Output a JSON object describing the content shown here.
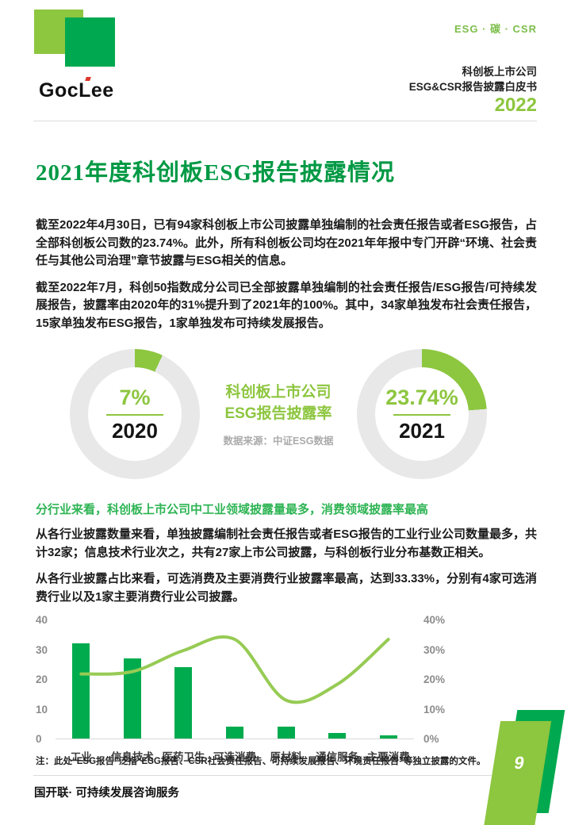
{
  "header": {
    "logo_text_1": "Goc",
    "logo_text_2": "L",
    "logo_text_3": "ee",
    "tagline": "ESG · 碳 · CSR",
    "title_line1": "科创板上市公司",
    "title_line2": "ESG&CSR报告披露白皮书",
    "year": "2022"
  },
  "main_title": "2021年度科创板ESG报告披露情况",
  "paragraphs": [
    "截至2022年4月30日，已有94家科创板上市公司披露单独编制的社会责任报告或者ESG报告，占全部科创板公司数的23.74%。此外，所有科创板公司均在2021年年报中专门开辟“环境、社会责任与其他公司治理”章节披露与ESG相关的信息。",
    "截至2022年7月，科创50指数成分公司已全部披露单独编制的社会责任报告/ESG报告/可持续发展报告，披露率由2020年的31%提升到了2021年的100%。其中，34家单独发布社会责任报告，15家单独发布ESG报告，1家单独发布可持续发展报告。"
  ],
  "donut_section": {
    "center_title_line1": "科创板上市公司",
    "center_title_line2": "ESG报告披露率",
    "source": "数据来源：中证ESG数据",
    "donuts": [
      {
        "value": 7,
        "display": "7%",
        "year": "2020"
      },
      {
        "value": 23.74,
        "display": "23.74%",
        "year": "2021"
      }
    ]
  },
  "subtitle": "分行业来看，科创板上市公司中工业领域披露量最多，消费领域披露率最高",
  "paragraphs2": [
    "从各行业披露数量来看，单独披露编制社会责任报告或者ESG报告的工业行业公司数量最多，共计32家；信息技术行业次之，共有27家上市公司披露，与科创板行业分布基数正相关。",
    "从各行业披露占比来看，可选消费及主要消费行业披露率最高，达到33.33%，分别有4家可选消费行业以及1家主要消费行业公司披露。"
  ],
  "chart_data": [
    {
      "type": "pie",
      "subtype": "donut-pair",
      "title": "科创板上市公司ESG报告披露率",
      "source": "数据来源：中证ESG数据",
      "slices": [
        {
          "label": "2020",
          "value": 7,
          "display": "7%"
        },
        {
          "label": "2021",
          "value": 23.74,
          "display": "23.74%"
        }
      ]
    },
    {
      "type": "bar",
      "subtype": "bar+line-combo",
      "categories": [
        "工业",
        "信息技术",
        "医药卫生",
        "可选消费",
        "原材料",
        "通信服务",
        "主要消费"
      ],
      "series": [
        {
          "chart": "bar",
          "axis": "left",
          "values": [
            32,
            27,
            24,
            4,
            4,
            2,
            1
          ]
        },
        {
          "chart": "line",
          "axis": "right",
          "values": [
            21.7,
            22.5,
            29.6,
            33.33,
            12.9,
            18.2,
            33.33
          ]
        }
      ],
      "left_axis": {
        "ticks": [
          0,
          10,
          20,
          30,
          40
        ],
        "max": 40
      },
      "right_axis": {
        "ticks": [
          "0%",
          "10%",
          "20%",
          "30%",
          "40%"
        ],
        "max": 40
      },
      "grid": false,
      "legend_position": "none",
      "title": "",
      "xlabel": "",
      "ylabel": ""
    }
  ],
  "footnote": "注：此处“ESG报告”泛指“ESG报告、CSR社会责任报告、可持续发展报告、环境责任报告”等独立披露的文件。",
  "footer": "国开联· 可持续发展咨询服务",
  "page_number": "9",
  "colors": {
    "lime": "#8dc63f",
    "kelly_green": "#00ab4e",
    "title_green": "#009944",
    "subtitle_green": "#2eb454",
    "ring_gray": "#e8e8e8",
    "line_green": "#97cb54",
    "accent_red": "#e0352b"
  }
}
